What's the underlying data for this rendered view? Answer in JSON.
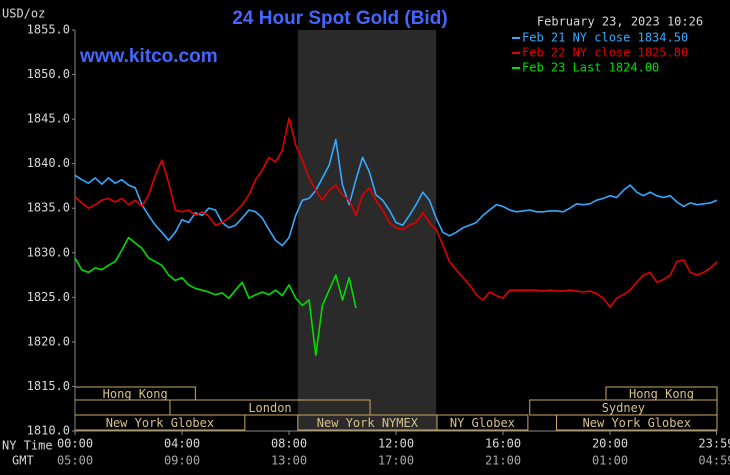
{
  "chart_data": {
    "type": "line",
    "title": "24 Hour Spot Gold (Bid)",
    "timestamp": "February 23, 2023 10:26",
    "ylabel": "USD/oz",
    "watermark": "www.kitco.com",
    "xlabel": "NY Time",
    "x2label": "GMT",
    "xlim": [
      0,
      24
    ],
    "ylim": [
      1810,
      1855
    ],
    "xticks": [
      {
        "value": 0,
        "label": "00:00"
      },
      {
        "value": 4,
        "label": "04:00"
      },
      {
        "value": 8,
        "label": "08:00"
      },
      {
        "value": 12,
        "label": "12:00"
      },
      {
        "value": 16,
        "label": "16:00"
      },
      {
        "value": 20,
        "label": "20:00"
      },
      {
        "value": 23.98,
        "label": "23:59"
      }
    ],
    "x2ticks": [
      "05:00",
      "09:00",
      "13:00",
      "17:00",
      "21:00",
      "01:00",
      "04:59"
    ],
    "yticks": [
      {
        "value": 1855,
        "label": "1855.0"
      },
      {
        "value": 1850,
        "label": "1850.0"
      },
      {
        "value": 1845,
        "label": "1845.0"
      },
      {
        "value": 1840,
        "label": "1840.0"
      },
      {
        "value": 1835,
        "label": "1835.0"
      },
      {
        "value": 1830,
        "label": "1830.0"
      },
      {
        "value": 1825,
        "label": "1825.0"
      },
      {
        "value": 1820,
        "label": "1820.0"
      },
      {
        "value": 1815,
        "label": "1815.0"
      },
      {
        "value": 1810,
        "label": "1810.0"
      }
    ],
    "shaded": [
      8.33,
      13.5
    ],
    "sessions": [
      [
        {
          "label": "Hong Kong",
          "start": 0,
          "end": 4.5
        },
        {
          "label": "Hong Kong",
          "start": 19.85,
          "end": 24
        }
      ],
      [
        {
          "label": "London",
          "start": 3.55,
          "end": 11.03
        },
        {
          "label": "Sydney",
          "start": 17,
          "end": 24
        }
      ],
      [
        {
          "label": "New York Globex",
          "start": 0,
          "end": 6.35
        },
        {
          "label": "New York NYMEX",
          "start": 8.33,
          "end": 13.53
        },
        {
          "label": "NY Globex",
          "start": 13.53,
          "end": 16.93
        },
        {
          "label": "New York Globex",
          "start": 18,
          "end": 24
        }
      ]
    ],
    "x": [
      0,
      0.25,
      0.5,
      0.75,
      1,
      1.25,
      1.5,
      1.75,
      2,
      2.25,
      2.5,
      2.75,
      3,
      3.25,
      3.5,
      3.75,
      4,
      4.25,
      4.5,
      4.75,
      5,
      5.25,
      5.5,
      5.75,
      6,
      6.25,
      6.5,
      6.75,
      7,
      7.25,
      7.5,
      7.75,
      8,
      8.25,
      8.5,
      8.75,
      9,
      9.25,
      9.5,
      9.75,
      10,
      10.25,
      10.5,
      10.75,
      11,
      11.25,
      11.5,
      11.75,
      12,
      12.25,
      12.5,
      12.75,
      13,
      13.25,
      13.5,
      13.75,
      14,
      14.25,
      14.5,
      14.75,
      15,
      15.25,
      15.5,
      15.75,
      16,
      16.25,
      16.5,
      16.75,
      17,
      17.25,
      17.5,
      17.75,
      18,
      18.25,
      18.5,
      18.75,
      19,
      19.25,
      19.5,
      19.75,
      20,
      20.25,
      20.5,
      20.75,
      21,
      21.25,
      21.5,
      21.75,
      22,
      22.25,
      22.5,
      22.75,
      23,
      23.25,
      23.5,
      23.75,
      24
    ],
    "series": [
      {
        "name": "Feb 21 NY close 1834.50",
        "color": "#33aaff",
        "values": [
          1838.7,
          1838.2,
          1837.8,
          1838.4,
          1837.7,
          1838.4,
          1837.8,
          1838.2,
          1837.6,
          1837.3,
          1835.4,
          1834.2,
          1833.1,
          1832.3,
          1831.4,
          1832.3,
          1833.7,
          1833.4,
          1834.5,
          1834.2,
          1835.0,
          1834.8,
          1833.4,
          1832.8,
          1833.1,
          1833.9,
          1834.8,
          1834.6,
          1833.9,
          1832.6,
          1831.4,
          1830.8,
          1831.7,
          1834.2,
          1835.9,
          1836.1,
          1837.0,
          1838.4,
          1839.8,
          1842.7,
          1837.6,
          1835.4,
          1838.2,
          1840.7,
          1839.1,
          1836.5,
          1835.9,
          1834.8,
          1833.4,
          1833.1,
          1834.2,
          1835.4,
          1836.8,
          1835.9,
          1833.9,
          1832.3,
          1831.9,
          1832.3,
          1832.8,
          1833.1,
          1833.4,
          1834.2,
          1834.8,
          1835.4,
          1835.2,
          1834.8,
          1834.6,
          1834.7,
          1834.8,
          1834.6,
          1834.6,
          1834.7,
          1834.7,
          1834.6,
          1835.0,
          1835.5,
          1835.4,
          1835.5,
          1835.9,
          1836.1,
          1836.4,
          1836.2,
          1837.0,
          1837.6,
          1836.8,
          1836.4,
          1836.8,
          1836.4,
          1836.2,
          1836.4,
          1835.7,
          1835.2,
          1835.6,
          1835.4,
          1835.5,
          1835.6,
          1835.9
        ]
      },
      {
        "name": "Feb 22 NY close 1825.80",
        "color": "#e00000",
        "values": [
          1836.3,
          1835.6,
          1835.0,
          1835.4,
          1835.9,
          1836.1,
          1835.7,
          1836.1,
          1835.4,
          1835.9,
          1835.2,
          1836.5,
          1838.7,
          1840.4,
          1837.9,
          1834.8,
          1834.6,
          1834.8,
          1834.2,
          1834.6,
          1834.1,
          1833.1,
          1833.4,
          1833.9,
          1834.6,
          1835.4,
          1836.5,
          1838.2,
          1839.3,
          1840.7,
          1840.2,
          1841.5,
          1845.1,
          1842.1,
          1840.4,
          1838.4,
          1837.0,
          1835.9,
          1837.0,
          1837.6,
          1836.5,
          1835.9,
          1834.2,
          1836.5,
          1837.3,
          1835.9,
          1834.8,
          1833.4,
          1832.8,
          1832.6,
          1833.1,
          1833.4,
          1834.5,
          1833.4,
          1832.6,
          1830.9,
          1829.0,
          1828.1,
          1827.2,
          1826.4,
          1825.3,
          1824.7,
          1825.6,
          1825.2,
          1824.9,
          1825.8,
          1825.8,
          1825.8,
          1825.8,
          1825.8,
          1825.7,
          1825.8,
          1825.7,
          1825.7,
          1825.8,
          1825.7,
          1825.6,
          1825.7,
          1825.4,
          1824.9,
          1823.9,
          1824.9,
          1825.3,
          1825.8,
          1826.7,
          1827.5,
          1827.8,
          1826.7,
          1827.0,
          1827.5,
          1829.0,
          1829.2,
          1827.8,
          1827.5,
          1827.8,
          1828.3,
          1829.0
        ]
      },
      {
        "name": "Feb 23 Last 1824.00",
        "color": "#00dd00",
        "values": [
          1829.4,
          1828.1,
          1827.8,
          1828.3,
          1828.1,
          1828.6,
          1829.0,
          1830.3,
          1831.7,
          1831.1,
          1830.5,
          1829.4,
          1829.0,
          1828.6,
          1827.5,
          1826.9,
          1827.2,
          1826.4,
          1826.0,
          1825.8,
          1825.6,
          1825.3,
          1825.5,
          1824.9,
          1825.8,
          1826.7,
          1824.9,
          1825.3,
          1825.6,
          1825.3,
          1825.8,
          1825.2,
          1826.4,
          1824.9,
          1824.1,
          1824.7,
          1818.5,
          1824.1,
          1825.8,
          1827.5,
          1824.7,
          1827.2,
          1823.8,
          null,
          null,
          null,
          null,
          null,
          null,
          null,
          null,
          null,
          null,
          null,
          null,
          null,
          null,
          null,
          null,
          null,
          null,
          null,
          null,
          null,
          null,
          null,
          null,
          null,
          null,
          null,
          null,
          null,
          null,
          null,
          null,
          null,
          null,
          null,
          null,
          null,
          null,
          null,
          null,
          null,
          null,
          null,
          null,
          null,
          null,
          null,
          null,
          null,
          null,
          null,
          null,
          null,
          null
        ]
      }
    ]
  }
}
